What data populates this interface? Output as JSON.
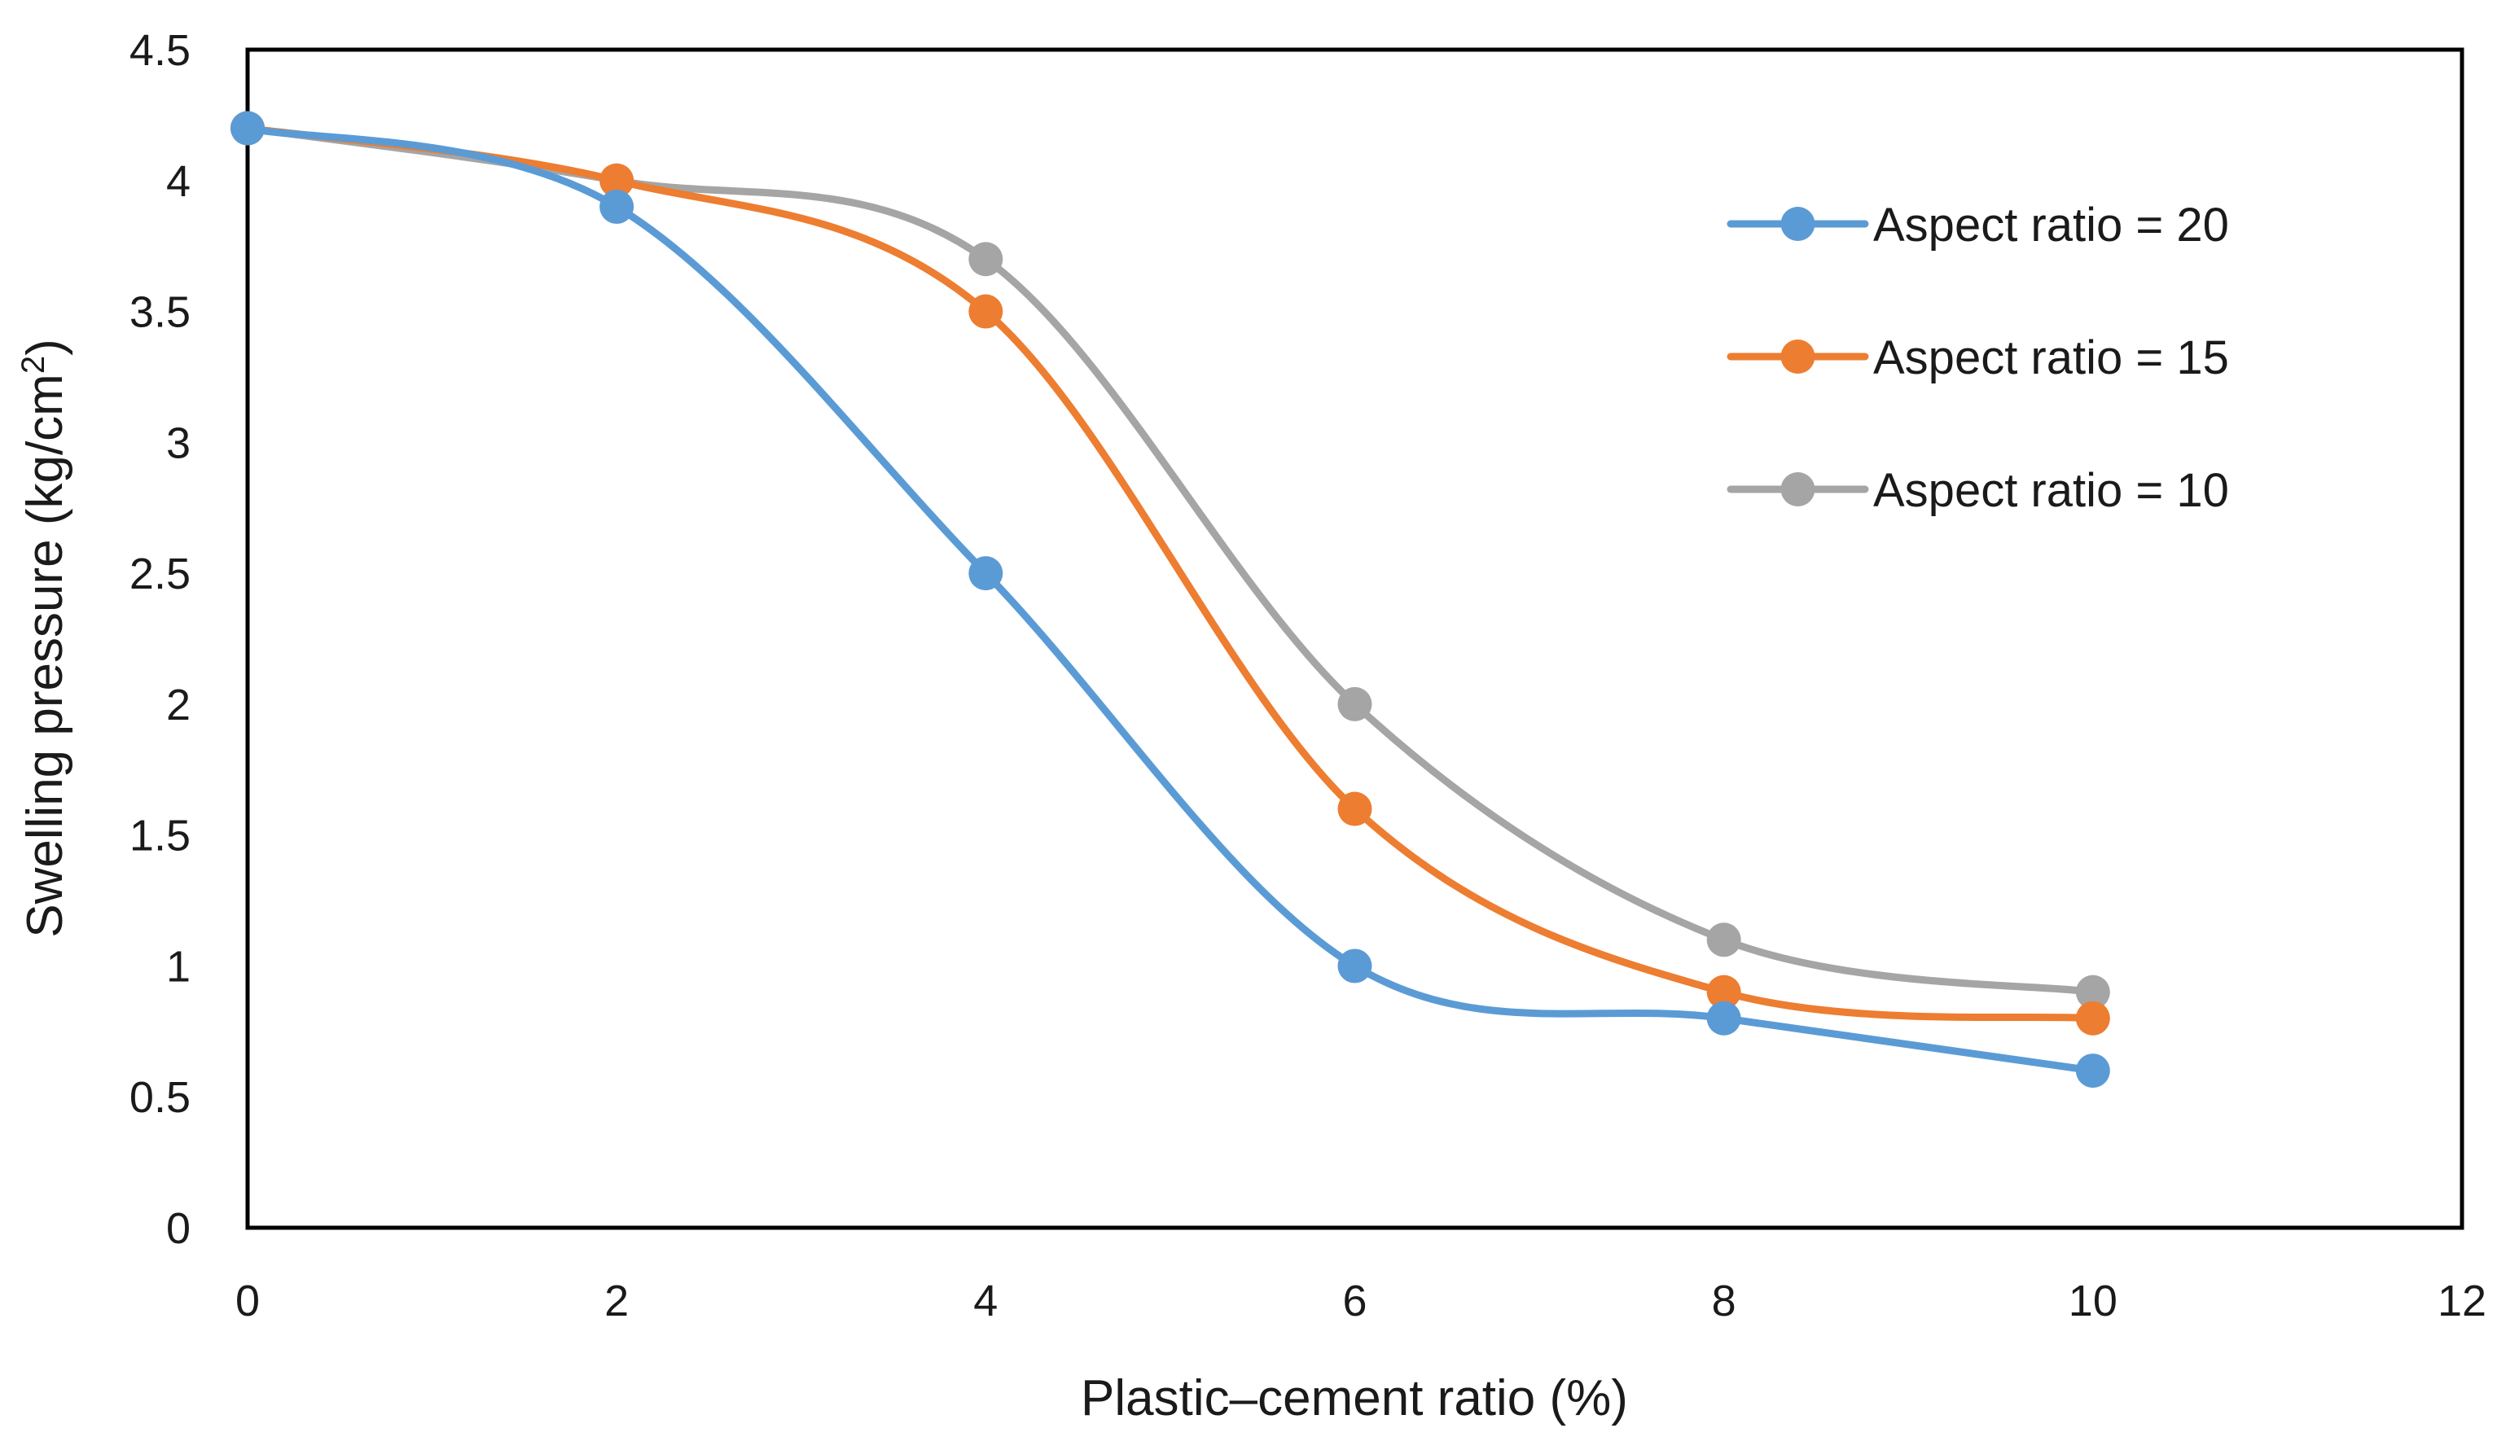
{
  "chart_data": {
    "type": "line",
    "title": "",
    "xlabel": "Plastic–cement ratio (%)",
    "ylabel_main": "Swelling pressure (kg/cm",
    "ylabel_sup": "2",
    "ylabel_close": ")",
    "xlim": [
      0,
      12
    ],
    "ylim": [
      0,
      4.5
    ],
    "xticks": [
      "0",
      "2",
      "4",
      "6",
      "8",
      "10",
      "12"
    ],
    "yticks": [
      "0",
      "0.5",
      "1",
      "1.5",
      "2",
      "2.5",
      "3",
      "3.5",
      "4",
      "4.5"
    ],
    "grid": false,
    "smooth": true,
    "legend_position": "top-right",
    "x": [
      0,
      2,
      4,
      6,
      8,
      10
    ],
    "series": [
      {
        "name": "Aspect ratio = 20",
        "color": "#5b9bd5",
        "values": [
          4.2,
          3.9,
          2.5,
          1.0,
          0.8,
          0.6
        ]
      },
      {
        "name": "Aspect ratio = 15",
        "color": "#ed7d31",
        "values": [
          4.2,
          4.0,
          3.5,
          1.6,
          0.9,
          0.8
        ]
      },
      {
        "name": "Aspect ratio = 10",
        "color": "#a5a5a5",
        "values": [
          4.2,
          4.0,
          3.7,
          2.0,
          1.1,
          0.9
        ]
      }
    ]
  }
}
